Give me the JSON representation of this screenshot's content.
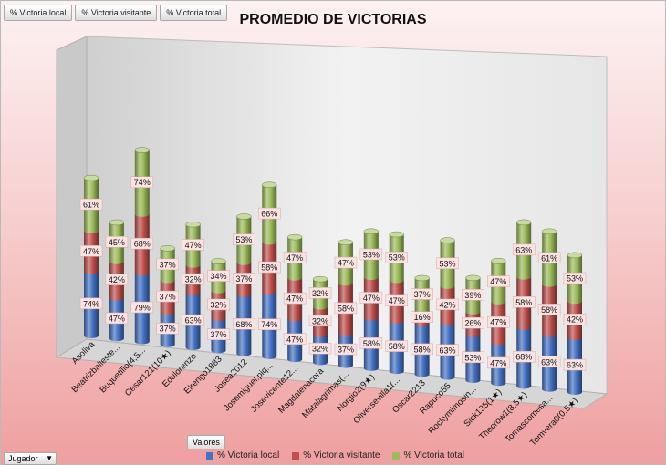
{
  "field_buttons": [
    "% Victoria local",
    "% Victoria visitante",
    "% Victoria total"
  ],
  "valores_label": "Valores",
  "jugador_label": "Jugador",
  "colors": {
    "local": "#4472c4",
    "visitante": "#c0504d",
    "total": "#9bbb59"
  },
  "chart_data": {
    "type": "bar",
    "stacked": true,
    "title": "PROMEDIO DE VICTORIAS",
    "legend_position": "bottom",
    "categories": [
      "Asoliva",
      "Beatrizballeste...",
      "Buquetillo(4,5...",
      "Cesar121(10★)",
      "Edulorenzo",
      "Elrengo1883",
      "Josea2012",
      "Josemiguel.piq...",
      "Josevicente12...",
      "Magdalenacora",
      "Matalagrimas(...",
      "Norgio2(9★)",
      "Oliversevilla1(...",
      "Oscar2213",
      "Rapuco55",
      "Rockymimosin...",
      "Sick135(1★)",
      "Thecrow1(8,5★)",
      "Tomascomesa...",
      "Tomvera0(0,5★)"
    ],
    "series": [
      {
        "name": "% Victoria local",
        "values": [
          0.74,
          0.47,
          0.79,
          0.37,
          0.63,
          0.37,
          0.68,
          0.74,
          0.47,
          0.32,
          0.37,
          0.58,
          0.58,
          0.58,
          0.63,
          0.53,
          0.47,
          0.68,
          0.63,
          0.63
        ],
        "labels": [
          "74%",
          "47%",
          "79%",
          "37%",
          "63%",
          "37%",
          "68%",
          "74%",
          "47%",
          "32%",
          "37%",
          "58%",
          "58%",
          "58%",
          "63%",
          "53%",
          "47%",
          "68%",
          "63%",
          "63%"
        ]
      },
      {
        "name": "% Victoria visitante",
        "values": [
          0.47,
          0.42,
          0.68,
          0.37,
          0.32,
          0.32,
          0.37,
          0.58,
          0.47,
          0.32,
          0.58,
          0.47,
          0.47,
          0.16,
          0.42,
          0.26,
          0.47,
          0.58,
          0.58,
          0.42
        ],
        "labels": [
          "47%",
          "42%",
          "68%",
          "37%",
          "32%",
          "32%",
          "37%",
          "58%",
          "47%",
          "32%",
          "58%",
          "47%",
          "47%",
          "16%",
          "42%",
          "26%",
          "47%",
          "58%",
          "58%",
          "42%"
        ]
      },
      {
        "name": "% Victoria total",
        "values": [
          0.61,
          0.45,
          0.74,
          0.37,
          0.47,
          0.34,
          0.53,
          0.66,
          0.47,
          0.32,
          0.47,
          0.53,
          0.53,
          0.37,
          0.53,
          0.39,
          0.47,
          0.63,
          0.61,
          0.53
        ],
        "labels": [
          "61%",
          "45%",
          "74%",
          "37%",
          "47%",
          "34%",
          "53%",
          "66%",
          "47%",
          "32%",
          "47%",
          "53%",
          "53%",
          "37%",
          "53%",
          "39%",
          "47%",
          "63%",
          "61%",
          "53%"
        ]
      }
    ]
  }
}
